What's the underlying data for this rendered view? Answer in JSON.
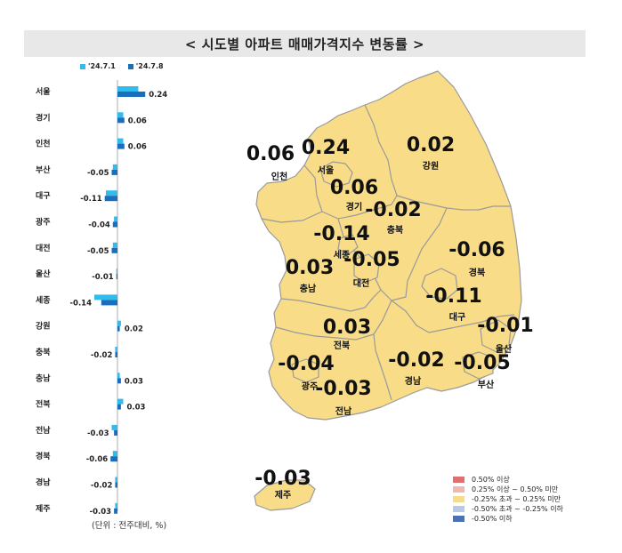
{
  "title": "< 시도별 아파트 매매가격지수 변동률 >",
  "unit_note": "(단위 : 전주대비, %)",
  "colors": {
    "series1": "#33bbee",
    "series2": "#1a6fbd",
    "map_fill": "#f8dc88",
    "map_stroke": "#9a9a9a"
  },
  "chart_data": {
    "type": "bar",
    "orientation": "horizontal",
    "categories": [
      "서울",
      "경기",
      "인천",
      "부산",
      "대구",
      "광주",
      "대전",
      "울산",
      "세종",
      "강원",
      "충북",
      "충남",
      "전북",
      "전남",
      "경북",
      "경남",
      "제주"
    ],
    "series": [
      {
        "name": "'24.7.1",
        "values": [
          0.18,
          0.05,
          0.05,
          -0.04,
          -0.1,
          -0.03,
          -0.04,
          -0.01,
          -0.2,
          0.03,
          -0.02,
          0.02,
          0.05,
          -0.05,
          -0.04,
          -0.02,
          -0.02
        ]
      },
      {
        "name": "'24.7.8",
        "values": [
          0.24,
          0.06,
          0.06,
          -0.05,
          -0.11,
          -0.04,
          -0.05,
          -0.01,
          -0.14,
          0.02,
          -0.02,
          0.03,
          0.03,
          -0.03,
          -0.06,
          -0.02,
          -0.03
        ]
      }
    ],
    "data_labels": [
      "0.24",
      "0.06",
      "0.06",
      "-0.05",
      "-0.11",
      "-0.04",
      "-0.05",
      "-0.01",
      "-0.14",
      "0.02",
      "-0.02",
      "0.03",
      "0.03",
      "-0.03",
      "-0.06",
      "-0.02",
      "-0.03"
    ]
  },
  "map": {
    "regions": [
      {
        "name": "인천",
        "value": "0.06"
      },
      {
        "name": "서울",
        "value": "0.24"
      },
      {
        "name": "강원",
        "value": "0.02"
      },
      {
        "name": "경기",
        "value": "0.06"
      },
      {
        "name": "충북",
        "value": "-0.02"
      },
      {
        "name": "세종",
        "value": "-0.14"
      },
      {
        "name": "대전",
        "value": "-0.05"
      },
      {
        "name": "경북",
        "value": "-0.06"
      },
      {
        "name": "충남",
        "value": "0.03"
      },
      {
        "name": "대구",
        "value": "-0.11"
      },
      {
        "name": "울산",
        "value": "-0.01"
      },
      {
        "name": "전북",
        "value": "0.03"
      },
      {
        "name": "광주",
        "value": "-0.04"
      },
      {
        "name": "경남",
        "value": "-0.02"
      },
      {
        "name": "부산",
        "value": "-0.05"
      },
      {
        "name": "전남",
        "value": "-0.03"
      },
      {
        "name": "제주",
        "value": "-0.03"
      }
    ],
    "legend": [
      {
        "label": "0.50% 이상",
        "color": "#e07070"
      },
      {
        "label": "0.25% 이상 ~ 0.50% 미만",
        "color": "#f0b8b0"
      },
      {
        "label": "-0.25% 초과 ~ 0.25% 미만",
        "color": "#f8dc88"
      },
      {
        "label": "-0.50% 초과 ~ -0.25% 이하",
        "color": "#b8c8e8"
      },
      {
        "label": "-0.50% 이하",
        "color": "#4a72b8"
      }
    ]
  }
}
